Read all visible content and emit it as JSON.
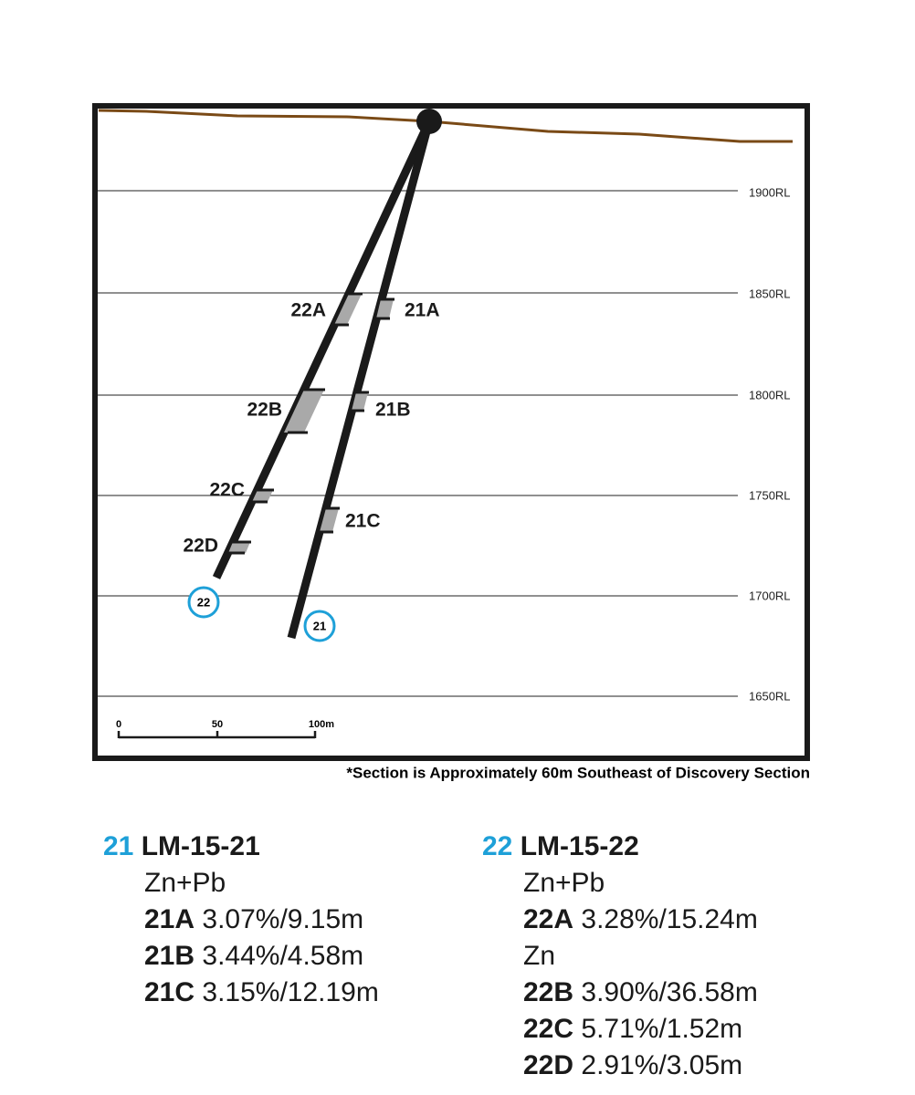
{
  "section": {
    "levels": [
      "1900RL",
      "1850RL",
      "1800RL",
      "1750RL",
      "1700RL",
      "1650RL"
    ],
    "scale": [
      "0",
      "50",
      "100m"
    ],
    "holes": [
      "22",
      "21"
    ],
    "intercepts": [
      "22A",
      "21A",
      "22B",
      "21B",
      "22C",
      "21C",
      "22D"
    ],
    "note": "*Section is Approximately 60m Southeast of Discovery Section"
  },
  "legend": [
    {
      "id": "21",
      "name": "LM-15-21",
      "lines": [
        {
          "text": "Zn+Pb"
        },
        {
          "label": "21A",
          "value": "3.07%/9.15m"
        },
        {
          "label": "21B",
          "value": "3.44%/4.58m"
        },
        {
          "label": "21C",
          "value": "3.15%/12.19m"
        }
      ]
    },
    {
      "id": "22",
      "name": "LM-15-22",
      "lines": [
        {
          "text": "Zn+Pb"
        },
        {
          "label": "22A",
          "value": "3.28%/15.24m"
        },
        {
          "text": "Zn"
        },
        {
          "label": "22B",
          "value": "3.90%/36.58m"
        },
        {
          "label": "22C",
          "value": "5.71%/1.52m"
        },
        {
          "label": "22D",
          "value": "2.91%/3.05m"
        }
      ]
    }
  ]
}
